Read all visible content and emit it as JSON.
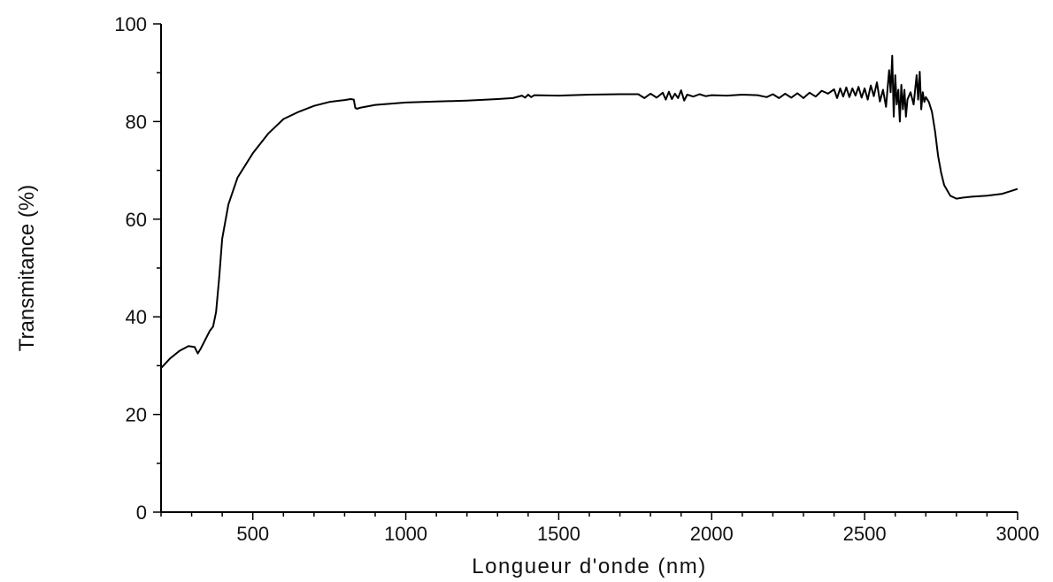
{
  "chart_data": {
    "type": "line",
    "title": "",
    "xlabel": "Longueur d'onde (nm)",
    "ylabel": "Transmitance (%)",
    "xlim": [
      200,
      3000
    ],
    "ylim": [
      0,
      100
    ],
    "x_ticks": [
      500,
      1000,
      1500,
      2000,
      2500,
      3000
    ],
    "x_minor_step": 100,
    "y_ticks": [
      0,
      20,
      40,
      60,
      80,
      100
    ],
    "y_minor_step": 10,
    "grid": false,
    "legend": "none",
    "line_color": "#000000",
    "series": [
      {
        "x": [
          200,
          230,
          260,
          290,
          310,
          320,
          330,
          350,
          360,
          370,
          380,
          390,
          400,
          420,
          450,
          500,
          550,
          600,
          650,
          700,
          750,
          800,
          820,
          830,
          835,
          840,
          850,
          900,
          1000,
          1100,
          1200,
          1300,
          1350,
          1380,
          1390,
          1400,
          1410,
          1420,
          1500,
          1600,
          1700,
          1760,
          1780,
          1800,
          1820,
          1840,
          1850,
          1860,
          1870,
          1880,
          1890,
          1900,
          1910,
          1920,
          1940,
          1960,
          1980,
          2000,
          2050,
          2100,
          2150,
          2180,
          2200,
          2220,
          2240,
          2260,
          2280,
          2300,
          2320,
          2340,
          2360,
          2380,
          2400,
          2410,
          2420,
          2430,
          2440,
          2450,
          2460,
          2470,
          2480,
          2490,
          2500,
          2510,
          2520,
          2530,
          2540,
          2550,
          2560,
          2570,
          2580,
          2585,
          2590,
          2595,
          2600,
          2605,
          2610,
          2615,
          2620,
          2625,
          2630,
          2635,
          2640,
          2650,
          2660,
          2670,
          2675,
          2680,
          2685,
          2690,
          2695,
          2700,
          2710,
          2720,
          2730,
          2740,
          2750,
          2760,
          2780,
          2800,
          2820,
          2850,
          2900,
          2950,
          2980,
          3000
        ],
        "values": [
          29.5,
          31.5,
          33,
          34,
          33.8,
          32.5,
          33.5,
          36,
          37.2,
          38,
          41,
          48,
          56,
          63,
          68.5,
          73.5,
          77.5,
          80.5,
          82,
          83.2,
          84,
          84.4,
          84.6,
          84.5,
          82.8,
          82.6,
          82.8,
          83.4,
          83.9,
          84.1,
          84.3,
          84.6,
          84.8,
          85.3,
          84.9,
          85.5,
          85.0,
          85.4,
          85.3,
          85.5,
          85.6,
          85.6,
          84.8,
          85.7,
          84.9,
          85.9,
          84.5,
          86.1,
          84.6,
          85.7,
          84.8,
          86.4,
          84.3,
          85.5,
          85.1,
          85.6,
          85.2,
          85.4,
          85.3,
          85.5,
          85.4,
          85.0,
          85.6,
          84.8,
          85.7,
          84.9,
          85.8,
          84.8,
          85.9,
          85.1,
          86.3,
          85.7,
          86.6,
          84.8,
          86.8,
          85.1,
          87.0,
          85.0,
          86.8,
          85.3,
          87.1,
          84.9,
          86.8,
          84.5,
          87.4,
          85.2,
          88.0,
          84.1,
          86.5,
          83.0,
          90.5,
          86.0,
          93.5,
          81.0,
          89.5,
          83.5,
          86.5,
          80.0,
          87.5,
          82.5,
          86.5,
          81.0,
          84.5,
          86.0,
          83.5,
          89.5,
          84.5,
          90.2,
          82.5,
          86.0,
          84.0,
          85.0,
          84.0,
          82.0,
          78.0,
          73.0,
          69.5,
          67.0,
          64.8,
          64.2,
          64.4,
          64.6,
          64.8,
          65.2,
          65.8,
          66.2
        ]
      }
    ]
  }
}
